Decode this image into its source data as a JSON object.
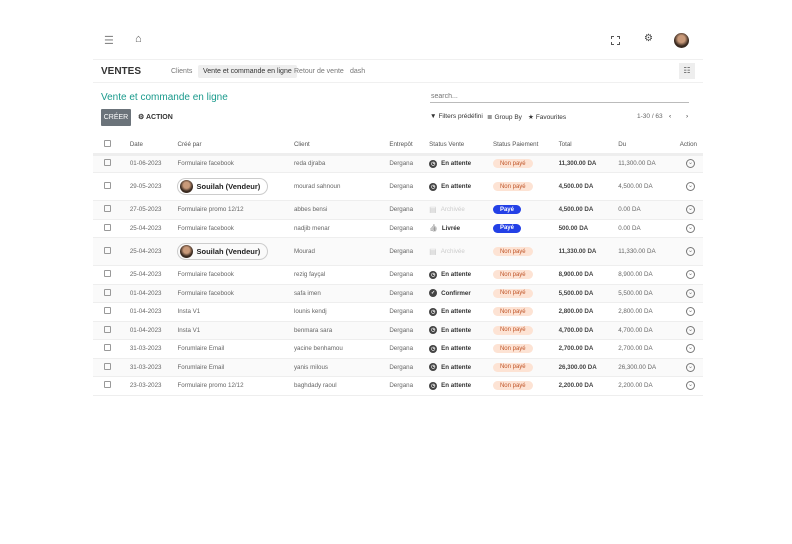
{
  "topbar": {
    "icons": [
      "menu-icon",
      "home-icon",
      "fullscreen-icon",
      "gear-icon",
      "avatar"
    ]
  },
  "nav": {
    "brand": "VENTES",
    "tabs": [
      "Clients",
      "Vente et commande en ligne",
      "Retour de vente",
      "dash"
    ],
    "active_tab": 1,
    "view_icon": "list-view-icon"
  },
  "page": {
    "title": "Vente et commande en ligne",
    "search_placeholder": "search...",
    "create_label": "CRÉER",
    "action_label": "ACTION",
    "filters_label": "Filters prédéfini",
    "groupby_label": "Group By",
    "favourites_label": "Favourites",
    "pager": "1-30 / 63"
  },
  "colors": {
    "accent": "#1a9a8c",
    "paid": "#2340e6",
    "unpaid_bg": "#fde3d4",
    "unpaid_text": "#c0562a"
  },
  "table": {
    "headers": [
      "Date",
      "Créé par",
      "Client",
      "Entrepôt",
      "Status Vente",
      "Status Paiement",
      "Total",
      "Du",
      "Action"
    ],
    "rows": [
      {
        "date": "01-06-2023",
        "by": "Formulaire facebook",
        "pill": false,
        "client": "reda djraba",
        "wh": "Dergana",
        "status": "En attente",
        "icon": "clock",
        "pay": "Non payé",
        "total": "11,300.00 DA",
        "du": "11,300.00 DA"
      },
      {
        "date": "29-05-2023",
        "by": "Souilah (Vendeur)",
        "pill": true,
        "client": "mourad sahnoun",
        "wh": "Dergana",
        "status": "En attente",
        "icon": "clock",
        "pay": "Non payé",
        "total": "4,500.00 DA",
        "du": "4,500.00 DA"
      },
      {
        "date": "27-05-2023",
        "by": "Formulaire promo 12/12",
        "pill": false,
        "client": "abbes bensi",
        "wh": "Dergana",
        "status": "Archivée",
        "icon": "archive",
        "pay": "Payé",
        "total": "4,500.00 DA",
        "du": "0.00 DA"
      },
      {
        "date": "25-04-2023",
        "by": "Formulaire facebook",
        "pill": false,
        "client": "nadjib menar",
        "wh": "Dergana",
        "status": "Livrée",
        "icon": "thumb",
        "pay": "Payé",
        "total": "500.00 DA",
        "du": "0.00 DA"
      },
      {
        "date": "25-04-2023",
        "by": "Souilah (Vendeur)",
        "pill": true,
        "client": "Mourad",
        "wh": "Dergana",
        "status": "Archivée",
        "icon": "archive",
        "pay": "Non payé",
        "total": "11,330.00 DA",
        "du": "11,330.00 DA"
      },
      {
        "date": "25-04-2023",
        "by": "Formulaire facebook",
        "pill": false,
        "client": "rezig fayçal",
        "wh": "Dergana",
        "status": "En attente",
        "icon": "clock",
        "pay": "Non payé",
        "total": "8,900.00 DA",
        "du": "8,900.00 DA"
      },
      {
        "date": "01-04-2023",
        "by": "Formulaire facebook",
        "pill": false,
        "client": "safa imen",
        "wh": "Dergana",
        "status": "Confirmer",
        "icon": "check",
        "pay": "Non payé",
        "total": "5,500.00 DA",
        "du": "5,500.00 DA"
      },
      {
        "date": "01-04-2023",
        "by": "Insta V1",
        "pill": false,
        "client": "lounis kendj",
        "wh": "Dergana",
        "status": "En attente",
        "icon": "clock",
        "pay": "Non payé",
        "total": "2,800.00 DA",
        "du": "2,800.00 DA"
      },
      {
        "date": "01-04-2023",
        "by": "Insta V1",
        "pill": false,
        "client": "benmara sara",
        "wh": "Dergana",
        "status": "En attente",
        "icon": "clock",
        "pay": "Non payé",
        "total": "4,700.00 DA",
        "du": "4,700.00 DA"
      },
      {
        "date": "31-03-2023",
        "by": "Forumlaire Email",
        "pill": false,
        "client": "yacine benhamou",
        "wh": "Dergana",
        "status": "En attente",
        "icon": "clock",
        "pay": "Non payé",
        "total": "2,700.00 DA",
        "du": "2,700.00 DA"
      },
      {
        "date": "31-03-2023",
        "by": "Forumlaire Email",
        "pill": false,
        "client": "yanis milous",
        "wh": "Dergana",
        "status": "En attente",
        "icon": "clock",
        "pay": "Non payé",
        "total": "26,300.00 DA",
        "du": "26,300.00 DA"
      },
      {
        "date": "23-03-2023",
        "by": "Formulaire promo 12/12",
        "pill": false,
        "client": "baghdady raoul",
        "wh": "Dergana",
        "status": "En attente",
        "icon": "clock",
        "pay": "Non payé",
        "total": "2,200.00 DA",
        "du": "2,200.00 DA"
      }
    ]
  }
}
